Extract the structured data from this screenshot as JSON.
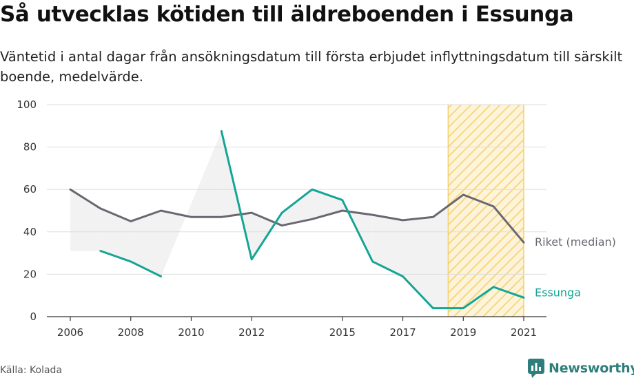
{
  "title": "Så utvecklas kötiden till äldreboenden i Essunga",
  "subtitle": "Väntetid i antal dagar från ansökningsdatum till första erbjudet inflyttningsdatum till särskilt boende, medelvärde.",
  "source": "Källa: Kolada",
  "brand": "Newsworthy",
  "colors": {
    "riket": "#6b6770",
    "essunga": "#14a595",
    "highlight": "#f5cf6b",
    "fill": "#f2f2f2",
    "brand": "#2e7f7b"
  },
  "chart_data": {
    "type": "line",
    "x": [
      2006,
      2007,
      2008,
      2009,
      2010,
      2011,
      2012,
      2013,
      2014,
      2015,
      2016,
      2017,
      2018,
      2019,
      2020,
      2021
    ],
    "x_ticks": [
      "2006",
      "2008",
      "2010",
      "2012",
      "2015",
      "2017",
      "2019",
      "2021"
    ],
    "y_ticks": [
      "0",
      "20",
      "40",
      "60",
      "80",
      "100"
    ],
    "ylim": [
      0,
      100
    ],
    "xlim": [
      2006,
      2021
    ],
    "grid": true,
    "highlight_range": [
      2018.5,
      2021
    ],
    "series": [
      {
        "name": "Riket (median)",
        "values": [
          60,
          51,
          45,
          50,
          47,
          47,
          49,
          43,
          46,
          50,
          48,
          45.5,
          47,
          57.5,
          52,
          35
        ]
      },
      {
        "name": "Essunga",
        "values": [
          null,
          31,
          26,
          19,
          null,
          87.5,
          27,
          49,
          60,
          55,
          26,
          19,
          4,
          4,
          14,
          9
        ]
      }
    ]
  }
}
